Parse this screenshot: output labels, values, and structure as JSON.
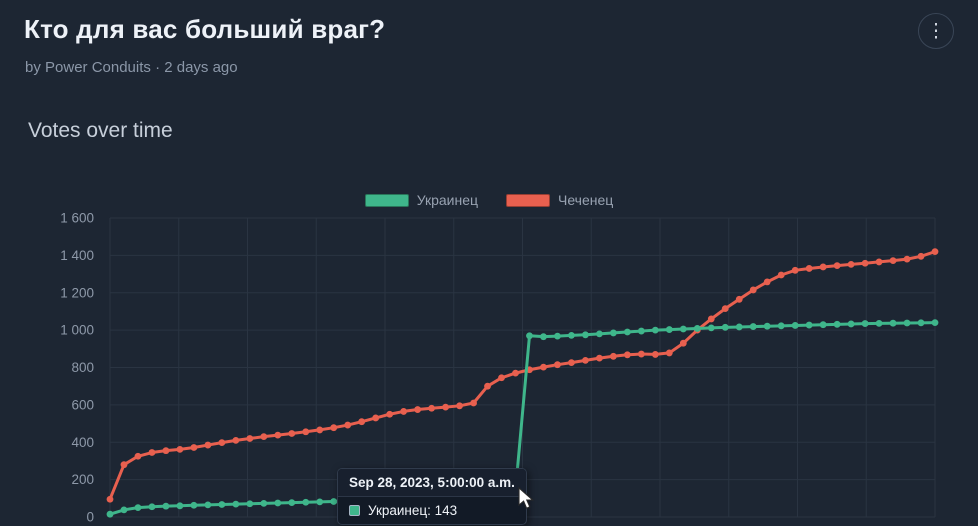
{
  "page": {
    "title": "Кто для вас больший враг?",
    "byline": "by Power Conduits · 2 days ago",
    "section_title": "Votes over time"
  },
  "icons": {
    "kebab": "⋮"
  },
  "colors": {
    "background": "#1d2633",
    "grid": "#2a3442",
    "axis_label": "#8e99a9",
    "series_green": "#3fb68b",
    "series_red": "#e8604f"
  },
  "legend": [
    {
      "label": "Украинец",
      "color": "#3fb68b"
    },
    {
      "label": "Чеченец",
      "color": "#e8604f"
    }
  ],
  "tooltip": {
    "date": "Sep 28, 2023, 5:00:00 a.m.",
    "series": "Украинец",
    "value": "143",
    "label_text": "Украинец: 143",
    "color": "#3fb68b"
  },
  "chart_data": {
    "type": "line",
    "title": "Votes over time",
    "ylim": [
      0,
      1600
    ],
    "ytick_step": 200,
    "ytick_labels": [
      "0",
      "200",
      "400",
      "600",
      "800",
      "1 000",
      "1 200",
      "1 400",
      "1 600"
    ],
    "grid": true,
    "legend_position": "top",
    "series": [
      {
        "name": "Украинец",
        "color": "#3fb68b",
        "values": [
          15,
          38,
          50,
          55,
          58,
          60,
          63,
          65,
          67,
          69,
          71,
          73,
          75,
          77,
          79,
          81,
          83,
          85,
          88,
          91,
          94,
          98,
          102,
          107,
          112,
          118,
          124,
          130,
          137,
          143,
          970,
          965,
          968,
          972,
          975,
          980,
          985,
          990,
          995,
          1000,
          1003,
          1006,
          1009,
          1012,
          1015,
          1017,
          1019,
          1021,
          1023,
          1025,
          1027,
          1029,
          1031,
          1033,
          1035,
          1036,
          1037,
          1038,
          1039,
          1040
        ]
      },
      {
        "name": "Чеченец",
        "color": "#e8604f",
        "values": [
          95,
          280,
          325,
          345,
          355,
          362,
          372,
          385,
          398,
          410,
          420,
          430,
          438,
          447,
          456,
          466,
          478,
          492,
          510,
          530,
          550,
          565,
          575,
          582,
          588,
          595,
          610,
          700,
          745,
          770,
          788,
          802,
          815,
          826,
          838,
          850,
          860,
          868,
          872,
          870,
          878,
          930,
          1000,
          1060,
          1115,
          1165,
          1215,
          1258,
          1295,
          1320,
          1330,
          1338,
          1345,
          1352,
          1358,
          1365,
          1372,
          1380,
          1395,
          1420
        ]
      }
    ],
    "highlight": {
      "series": "Украинец",
      "index": 29,
      "value": 143
    }
  }
}
